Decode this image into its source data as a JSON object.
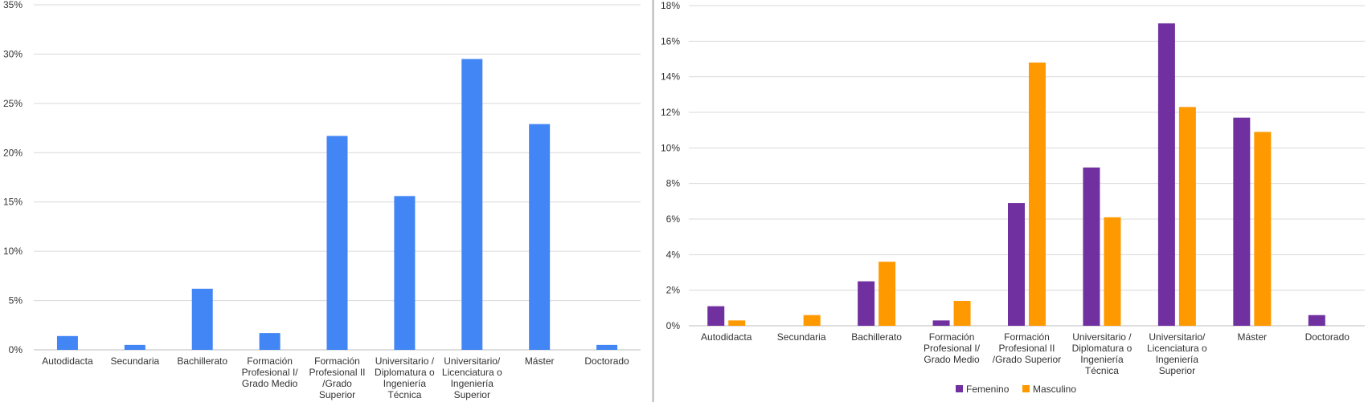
{
  "chart_data": [
    {
      "type": "bar",
      "categories": [
        [
          "Autodidacta"
        ],
        [
          "Secundaria"
        ],
        [
          "Bachillerato"
        ],
        [
          "Formación",
          "Profesional I/",
          "Grado Medio"
        ],
        [
          "Formación",
          "Profesional II",
          "/Grado",
          "Superior"
        ],
        [
          "Universitario /",
          "Diplomatura o",
          "Ingeniería",
          "Técnica"
        ],
        [
          "Universitario/",
          "Licenciatura o",
          "Ingeniería",
          "Superior"
        ],
        [
          "Máster"
        ],
        [
          "Doctorado"
        ]
      ],
      "series": [
        {
          "values": [
            1.4,
            0.5,
            6.2,
            1.7,
            21.7,
            15.6,
            29.5,
            22.9,
            0.5
          ],
          "color": "#4285f4"
        }
      ],
      "ylim": [
        0,
        35
      ],
      "yticks": [
        "0%",
        "5%",
        "10%",
        "15%",
        "20%",
        "25%",
        "30%",
        "35%"
      ],
      "grid": true,
      "legend": "none"
    },
    {
      "type": "bar",
      "categories": [
        [
          "Autodidacta"
        ],
        [
          "Secundaria"
        ],
        [
          "Bachillerato"
        ],
        [
          "Formación",
          "Profesional I/",
          "Grado Medio"
        ],
        [
          "Formación",
          "Profesional II",
          "/Grado Superior"
        ],
        [
          "Universitario /",
          "Diplomatura o",
          "Ingeniería",
          "Técnica"
        ],
        [
          "Universitario/",
          "Licenciatura o",
          "Ingeniería",
          "Superior"
        ],
        [
          "Máster"
        ],
        [
          "Doctorado"
        ]
      ],
      "series": [
        {
          "name": "Femenino",
          "values": [
            1.1,
            0.0,
            2.5,
            0.3,
            6.9,
            8.9,
            17.0,
            11.7,
            0.6
          ],
          "color": "#7030a0"
        },
        {
          "name": "Masculino",
          "values": [
            0.3,
            0.6,
            3.6,
            1.4,
            14.8,
            6.1,
            12.3,
            10.9,
            0.0
          ],
          "color": "#ff9900"
        }
      ],
      "ylim": [
        0,
        18
      ],
      "yticks": [
        "0%",
        "2%",
        "4%",
        "6%",
        "8%",
        "10%",
        "12%",
        "14%",
        "16%",
        "18%"
      ],
      "grid": true,
      "legend": "bottom-center"
    }
  ]
}
